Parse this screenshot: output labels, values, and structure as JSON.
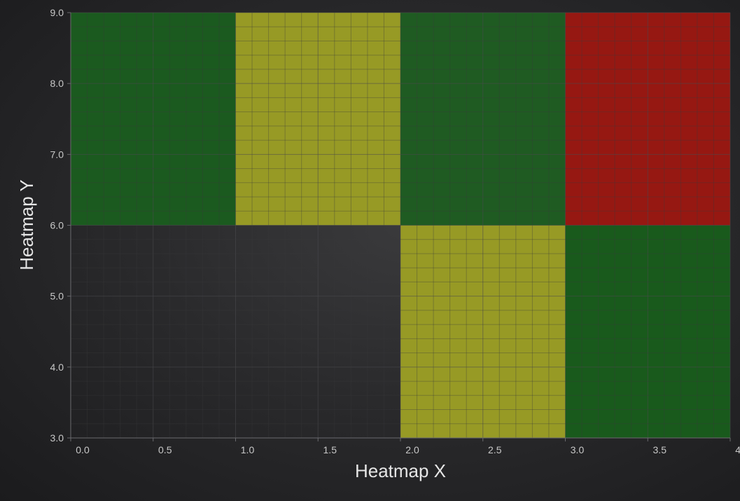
{
  "chart_data": {
    "type": "heatmap",
    "title": "",
    "xlabel": "Heatmap X",
    "ylabel": "Heatmap Y",
    "xlim": [
      0,
      4
    ],
    "ylim": [
      3,
      9
    ],
    "x_ticks": [
      "0.0",
      "0.5",
      "1.0",
      "1.5",
      "2.0",
      "2.5",
      "3.0",
      "3.5",
      "4.0"
    ],
    "y_ticks": [
      "3.0",
      "4.0",
      "5.0",
      "6.0",
      "7.0",
      "8.0",
      "9.0"
    ],
    "grid": true,
    "legend": "none",
    "cells": [
      {
        "x0": 0,
        "x1": 1,
        "y0": 6,
        "y1": 9,
        "color": "#1b5a1f"
      },
      {
        "x0": 1,
        "x1": 2,
        "y0": 6,
        "y1": 9,
        "color": "#979a25"
      },
      {
        "x0": 2,
        "x1": 3,
        "y0": 6,
        "y1": 9,
        "color": "#1f5b22"
      },
      {
        "x0": 3,
        "x1": 4,
        "y0": 6,
        "y1": 9,
        "color": "#961812"
      },
      {
        "x0": 2,
        "x1": 3,
        "y0": 3,
        "y1": 6,
        "color": "#979a25"
      },
      {
        "x0": 3,
        "x1": 4,
        "y0": 3,
        "y1": 6,
        "color": "#195a1c"
      }
    ],
    "colors": {
      "green": "#1b5a1f",
      "yellow": "#979a25",
      "red": "#961812",
      "grid_major": "#4a4a4e",
      "grid_minor": "#38383c",
      "axis_line": "#6a6a6e"
    }
  }
}
